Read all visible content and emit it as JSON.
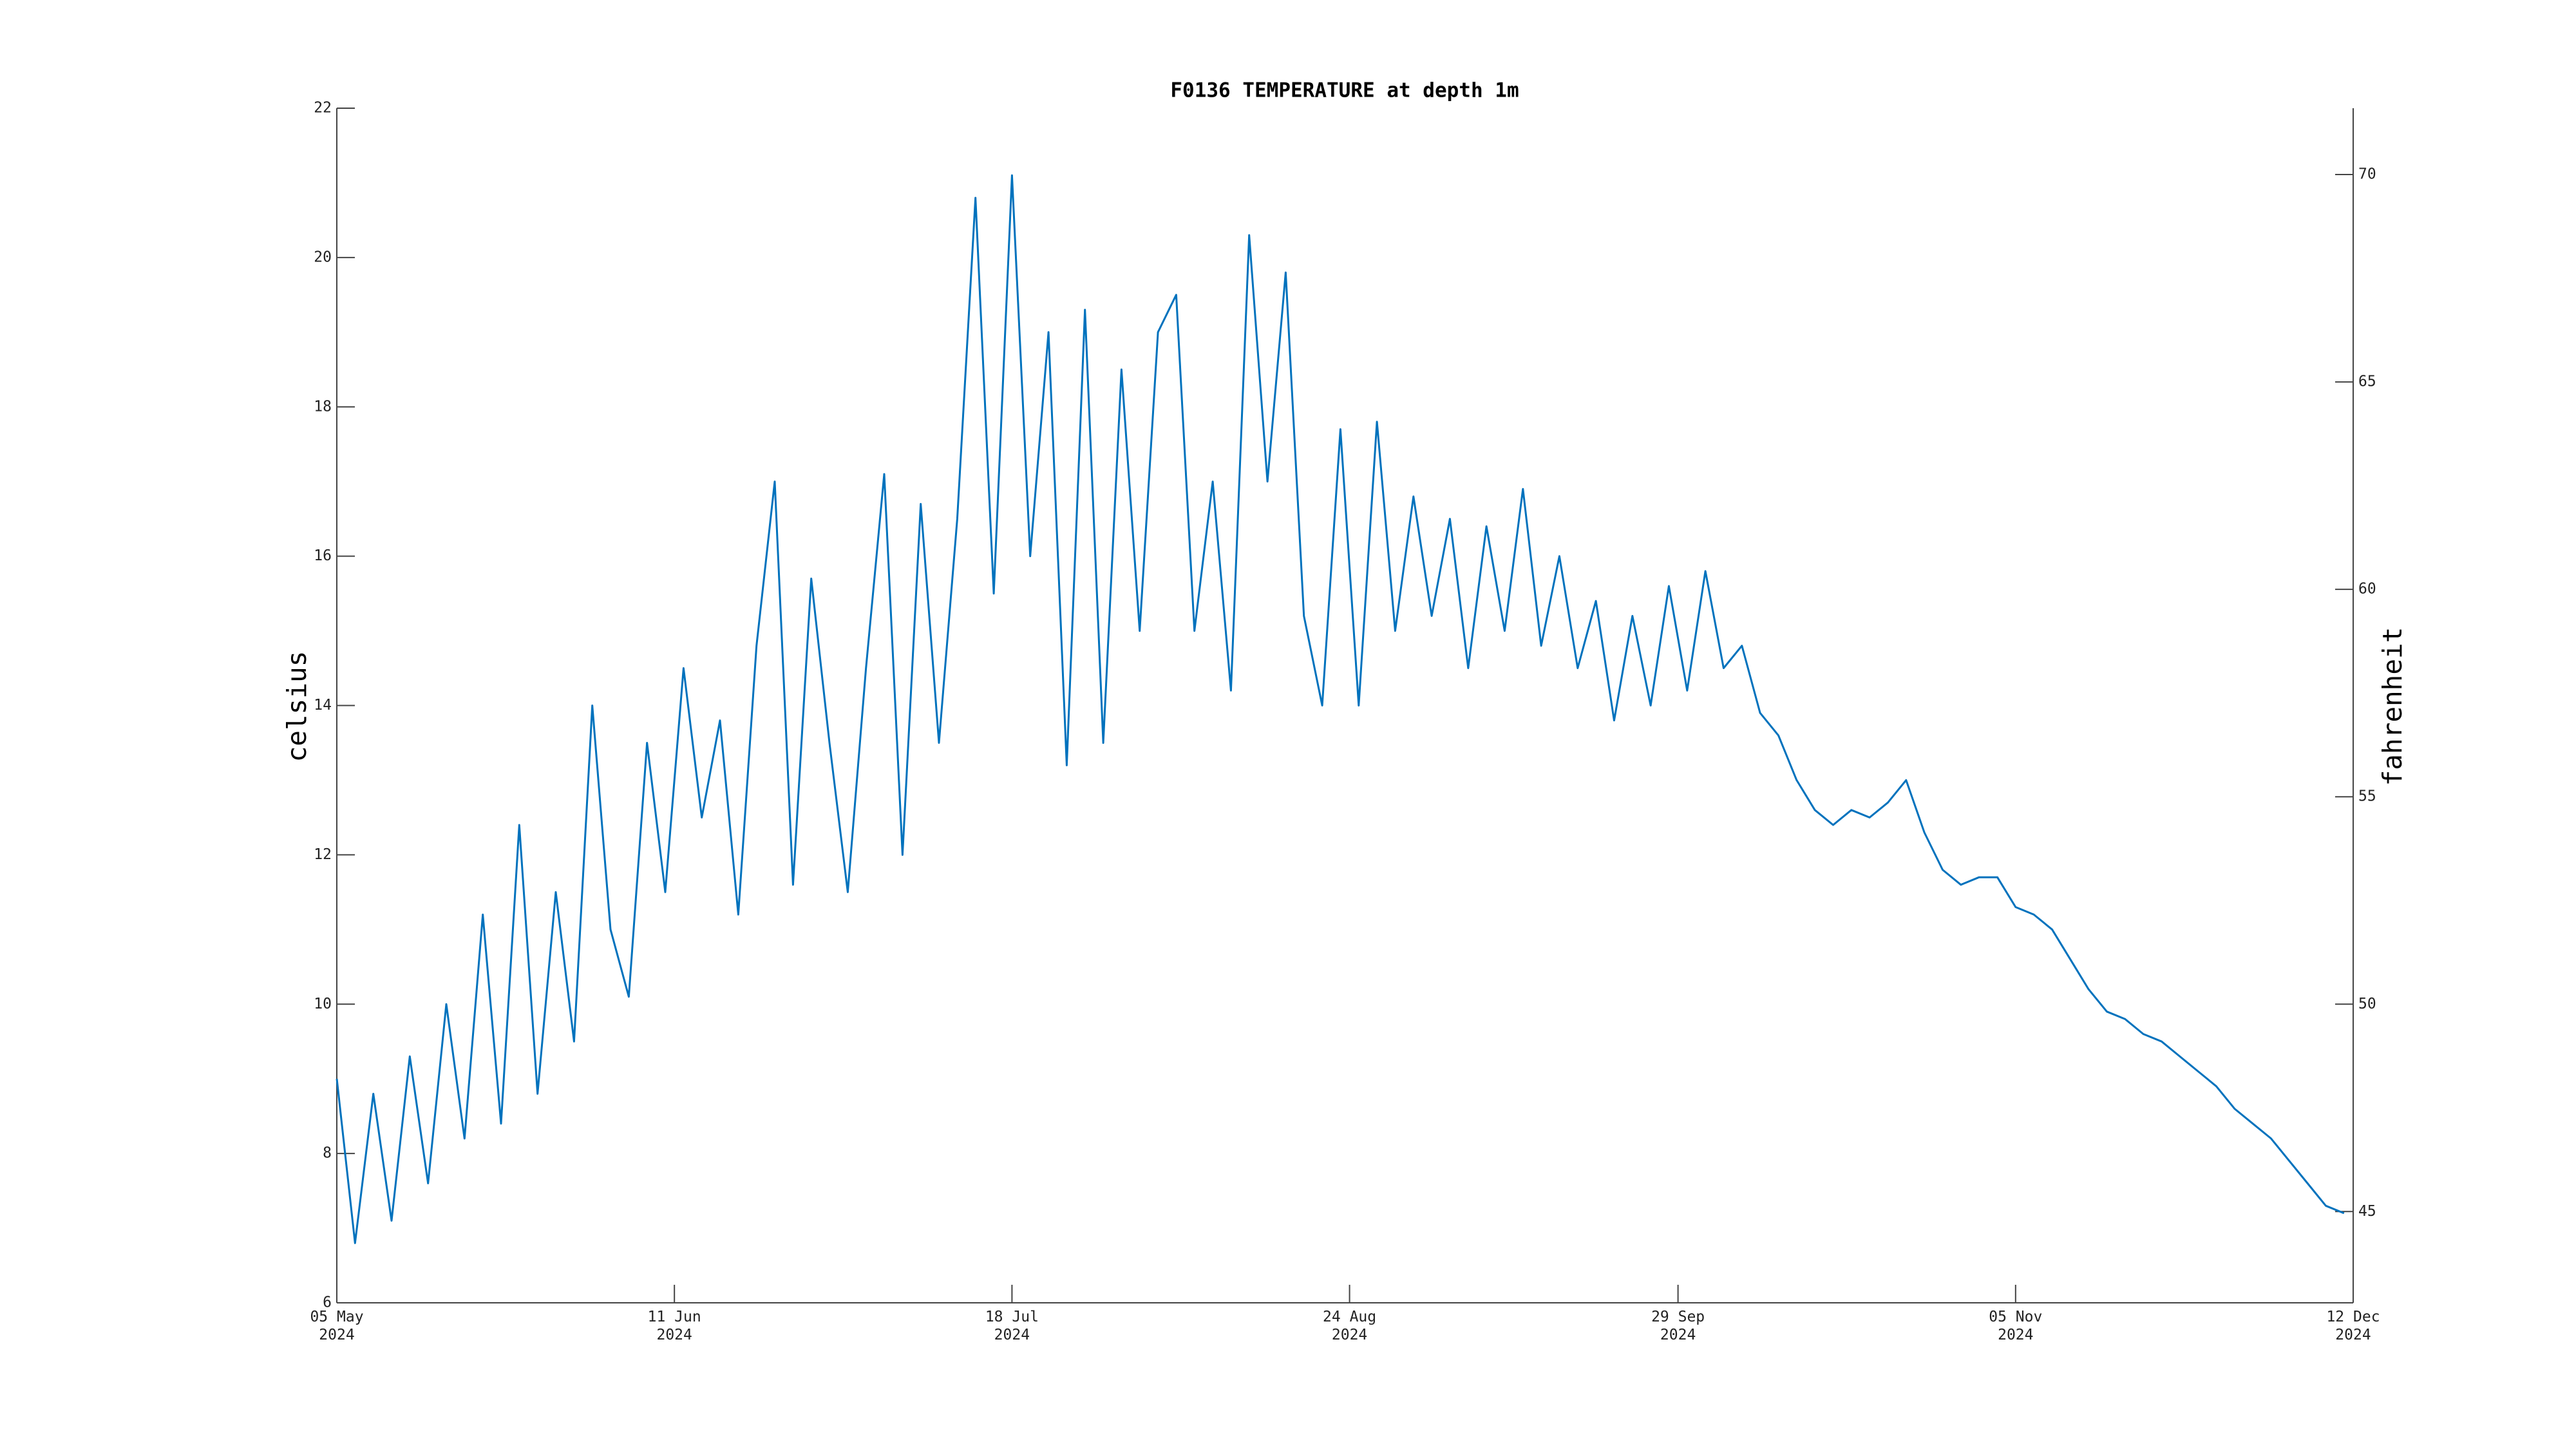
{
  "chart_data": {
    "type": "line",
    "title": "F0136 TEMPERATURE at depth 1m",
    "y_label": "celsius",
    "y2_label": "fahrenheit",
    "x": [
      "2024-05-05",
      "2024-05-07",
      "2024-05-09",
      "2024-05-11",
      "2024-05-13",
      "2024-05-15",
      "2024-05-17",
      "2024-05-19",
      "2024-05-21",
      "2024-05-23",
      "2024-05-25",
      "2024-05-27",
      "2024-05-29",
      "2024-05-31",
      "2024-06-02",
      "2024-06-04",
      "2024-06-06",
      "2024-06-08",
      "2024-06-10",
      "2024-06-12",
      "2024-06-14",
      "2024-06-16",
      "2024-06-18",
      "2024-06-20",
      "2024-06-22",
      "2024-06-24",
      "2024-06-26",
      "2024-06-28",
      "2024-06-30",
      "2024-07-02",
      "2024-07-04",
      "2024-07-06",
      "2024-07-08",
      "2024-07-10",
      "2024-07-12",
      "2024-07-14",
      "2024-07-16",
      "2024-07-18",
      "2024-07-20",
      "2024-07-22",
      "2024-07-24",
      "2024-07-26",
      "2024-07-28",
      "2024-07-30",
      "2024-08-01",
      "2024-08-03",
      "2024-08-05",
      "2024-08-07",
      "2024-08-09",
      "2024-08-11",
      "2024-08-13",
      "2024-08-15",
      "2024-08-17",
      "2024-08-19",
      "2024-08-21",
      "2024-08-23",
      "2024-08-25",
      "2024-08-27",
      "2024-08-29",
      "2024-08-31",
      "2024-09-02",
      "2024-09-04",
      "2024-09-06",
      "2024-09-08",
      "2024-09-10",
      "2024-09-12",
      "2024-09-14",
      "2024-09-16",
      "2024-09-18",
      "2024-09-20",
      "2024-09-22",
      "2024-09-24",
      "2024-09-26",
      "2024-09-28",
      "2024-09-30",
      "2024-10-02",
      "2024-10-04",
      "2024-10-06",
      "2024-10-08",
      "2024-10-10",
      "2024-10-12",
      "2024-10-14",
      "2024-10-16",
      "2024-10-18",
      "2024-10-20",
      "2024-10-22",
      "2024-10-24",
      "2024-10-26",
      "2024-10-28",
      "2024-10-30",
      "2024-11-01",
      "2024-11-03",
      "2024-11-05",
      "2024-11-07",
      "2024-11-09",
      "2024-11-11",
      "2024-11-13",
      "2024-11-15",
      "2024-11-17",
      "2024-11-19",
      "2024-11-21",
      "2024-11-23",
      "2024-11-25",
      "2024-11-27",
      "2024-11-29",
      "2024-12-01",
      "2024-12-03",
      "2024-12-05",
      "2024-12-07",
      "2024-12-09",
      "2024-12-11"
    ],
    "series": [
      {
        "color": "#0072bd",
        "values": [
          9.0,
          6.8,
          8.8,
          7.1,
          9.3,
          7.6,
          10.0,
          8.2,
          11.2,
          8.4,
          12.4,
          8.8,
          11.5,
          9.5,
          14.0,
          11.0,
          10.1,
          13.5,
          11.5,
          14.5,
          12.5,
          13.8,
          11.2,
          14.8,
          17.0,
          11.6,
          15.7,
          13.5,
          11.5,
          14.5,
          17.1,
          12.0,
          16.7,
          13.5,
          16.5,
          20.8,
          15.5,
          21.1,
          16.0,
          19.0,
          13.2,
          19.3,
          13.5,
          18.5,
          15.0,
          19.0,
          19.5,
          15.0,
          17.0,
          14.2,
          20.3,
          17.0,
          19.8,
          15.2,
          14.0,
          17.7,
          14.0,
          17.8,
          15.0,
          16.8,
          15.2,
          16.5,
          14.5,
          16.4,
          15.0,
          16.9,
          14.8,
          16.0,
          14.5,
          15.4,
          13.8,
          15.2,
          14.0,
          15.6,
          14.2,
          15.8,
          14.5,
          14.8,
          13.9,
          13.6,
          13.0,
          12.6,
          12.4,
          12.6,
          12.5,
          12.7,
          13.0,
          12.3,
          11.8,
          11.6,
          11.7,
          11.7,
          11.3,
          11.2,
          11.0,
          10.6,
          10.2,
          9.9,
          9.8,
          9.6,
          9.5,
          9.3,
          9.1,
          8.9,
          8.6,
          8.4,
          8.2,
          7.9,
          7.6,
          7.3,
          7.2
        ]
      }
    ],
    "xlim": [
      "2024-05-05",
      "2024-12-12"
    ],
    "xticks": [
      {
        "value": "2024-05-05",
        "label": "05 May\n2024"
      },
      {
        "value": "2024-06-11",
        "label": "11 Jun\n2024"
      },
      {
        "value": "2024-07-18",
        "label": "18 Jul\n2024"
      },
      {
        "value": "2024-08-24",
        "label": "24 Aug\n2024"
      },
      {
        "value": "2024-09-29",
        "label": "29 Sep\n2024"
      },
      {
        "value": "2024-11-05",
        "label": "05 Nov\n2024"
      },
      {
        "value": "2024-12-12",
        "label": "12 Dec\n2024"
      }
    ],
    "ylim": [
      6,
      22
    ],
    "yticks": [
      6,
      8,
      10,
      12,
      14,
      16,
      18,
      20,
      22
    ],
    "y2lim": [
      42.8,
      71.6
    ],
    "y2ticks": [
      45,
      50,
      55,
      60,
      65,
      70
    ],
    "grid": false
  }
}
